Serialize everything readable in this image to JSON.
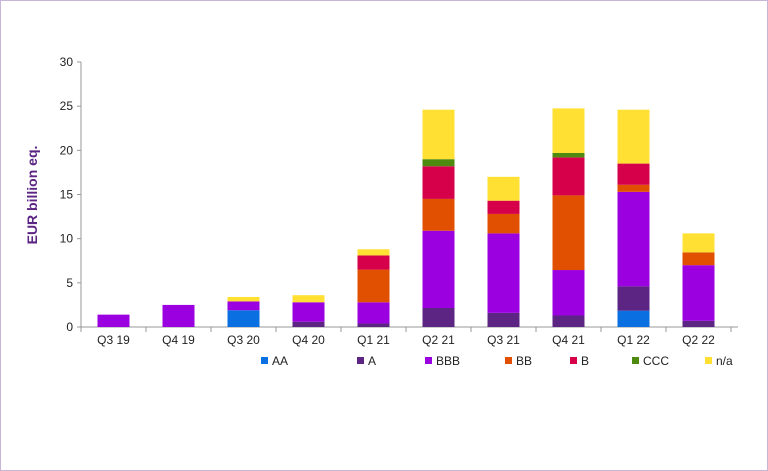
{
  "chart_data": {
    "type": "bar",
    "stacked": true,
    "title": "",
    "xlabel": "",
    "ylabel": "EUR billion eq.",
    "ylim": [
      0,
      30
    ],
    "yticks": [
      0,
      5,
      10,
      15,
      20,
      25,
      30
    ],
    "grid": false,
    "legend_position": "bottom",
    "categories": [
      "Q3 19",
      "Q4 19",
      "Q3 20",
      "Q4 20",
      "Q1 21",
      "Q2 21",
      "Q3 21",
      "Q4 21",
      "Q1 22",
      "Q2 22"
    ],
    "series": [
      {
        "name": "AA",
        "color": "#0a6fe0",
        "values": [
          0,
          0,
          1.9,
          0,
          0,
          0,
          0,
          0,
          1.85,
          0
        ]
      },
      {
        "name": "A",
        "color": "#5c2483",
        "values": [
          0,
          0,
          0,
          0.6,
          0.4,
          2.15,
          1.6,
          1.3,
          2.75,
          0.7
        ]
      },
      {
        "name": "BBB",
        "color": "#9b00e0",
        "values": [
          1.4,
          2.5,
          1.0,
          2.2,
          2.4,
          8.75,
          9.0,
          5.15,
          10.7,
          6.3
        ]
      },
      {
        "name": "BB",
        "color": "#e05000",
        "values": [
          0,
          0,
          0,
          0,
          3.7,
          3.6,
          2.2,
          8.45,
          0.8,
          1.45
        ]
      },
      {
        "name": "B",
        "color": "#d6004a",
        "values": [
          0,
          0,
          0,
          0,
          1.6,
          3.7,
          1.5,
          4.3,
          2.4,
          0
        ]
      },
      {
        "name": "CCC",
        "color": "#4f8a10",
        "values": [
          0,
          0,
          0,
          0,
          0,
          0.8,
          0,
          0.5,
          0,
          0
        ]
      },
      {
        "name": "n/a",
        "color": "#ffe033",
        "values": [
          0,
          0,
          0.5,
          0.8,
          0.7,
          5.6,
          2.7,
          5.05,
          6.1,
          2.15
        ]
      }
    ]
  }
}
